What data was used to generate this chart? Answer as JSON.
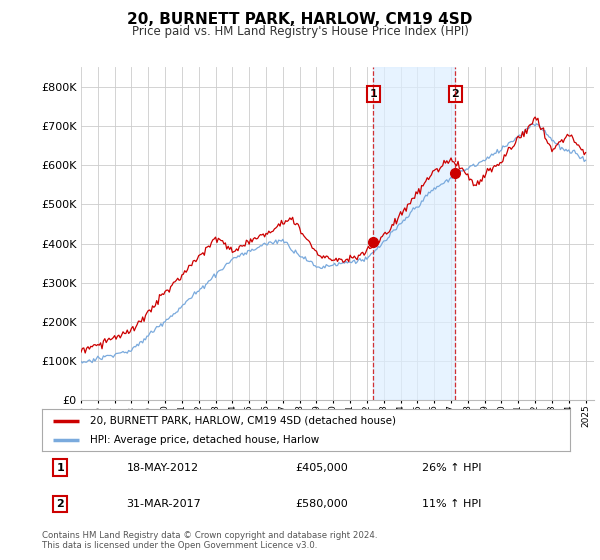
{
  "title": "20, BURNETT PARK, HARLOW, CM19 4SD",
  "subtitle": "Price paid vs. HM Land Registry's House Price Index (HPI)",
  "ylim": [
    0,
    850000
  ],
  "yticks": [
    0,
    100000,
    200000,
    300000,
    400000,
    500000,
    600000,
    700000,
    800000
  ],
  "ytick_labels": [
    "£0",
    "£100K",
    "£200K",
    "£300K",
    "£400K",
    "£500K",
    "£600K",
    "£700K",
    "£800K"
  ],
  "sale1": {
    "date_num": 2012.38,
    "price": 405000,
    "label": "1"
  },
  "sale2": {
    "date_num": 2017.25,
    "price": 580000,
    "label": "2"
  },
  "legend_line1": "20, BURNETT PARK, HARLOW, CM19 4SD (detached house)",
  "legend_line2": "HPI: Average price, detached house, Harlow",
  "table": [
    {
      "num": "1",
      "date": "18-MAY-2012",
      "price": "£405,000",
      "change": "26% ↑ HPI"
    },
    {
      "num": "2",
      "date": "31-MAR-2017",
      "price": "£580,000",
      "change": "11% ↑ HPI"
    }
  ],
  "footer": "Contains HM Land Registry data © Crown copyright and database right 2024.\nThis data is licensed under the Open Government Licence v3.0.",
  "line_color_red": "#cc0000",
  "line_color_blue": "#7aaadd",
  "shade_color": "#ddeeff",
  "background_color": "#ffffff",
  "plot_bg_color": "#ffffff",
  "grid_color": "#cccccc"
}
